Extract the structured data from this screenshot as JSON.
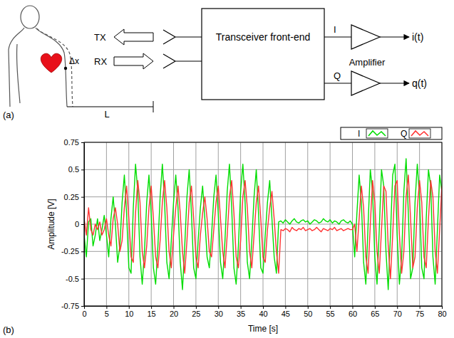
{
  "panel_labels": [
    "(a)",
    "(b)"
  ],
  "diagram": {
    "tx": "TX",
    "rx": "RX",
    "box": "Transceiver front-end",
    "i_channel": "I",
    "q_channel": "Q",
    "amplifier": "Amplifier",
    "i_output": "i(t)",
    "q_output": "q(t)",
    "displacement": "Δx",
    "distance": "L"
  },
  "chart_data": {
    "type": "line",
    "x_label": "Time [s]",
    "y_label": "Amplitude [V]",
    "x": [
      0,
      0.5,
      1,
      1.5,
      2,
      2.5,
      3,
      3.5,
      4,
      4.5,
      5,
      5.5,
      6,
      6.5,
      7,
      7.5,
      8,
      8.5,
      9,
      9.5,
      10,
      10.5,
      11,
      11.5,
      12,
      12.5,
      13,
      13.5,
      14,
      14.5,
      15,
      15.5,
      16,
      16.5,
      17,
      17.5,
      18,
      18.5,
      19,
      19.5,
      20,
      20.5,
      21,
      21.5,
      22,
      22.5,
      23,
      23.5,
      24,
      24.5,
      25,
      25.5,
      26,
      26.5,
      27,
      27.5,
      28,
      28.5,
      29,
      29.5,
      30,
      30.5,
      31,
      31.5,
      32,
      32.5,
      33,
      33.5,
      34,
      34.5,
      35,
      35.5,
      36,
      36.5,
      37,
      37.5,
      38,
      38.5,
      39,
      39.5,
      40,
      40.5,
      41,
      41.5,
      42,
      42.5,
      43,
      43.5,
      44,
      44.5,
      45,
      45.5,
      46,
      46.5,
      47,
      47.5,
      48,
      48.5,
      49,
      49.5,
      50,
      50.5,
      51,
      51.5,
      52,
      52.5,
      53,
      53.5,
      54,
      54.5,
      55,
      55.5,
      56,
      56.5,
      57,
      57.5,
      58,
      58.5,
      59,
      59.5,
      60,
      60.5,
      61,
      61.5,
      62,
      62.5,
      63,
      63.5,
      64,
      64.5,
      65,
      65.5,
      66,
      66.5,
      67,
      67.5,
      68,
      68.5,
      69,
      69.5,
      70,
      70.5,
      71,
      71.5,
      72,
      72.5,
      73,
      73.5,
      74,
      74.5,
      75,
      75.5,
      76,
      76.5,
      77,
      77.5,
      78,
      78.5,
      79,
      79.5,
      80
    ],
    "series": [
      {
        "name": "I",
        "color": "#00dd00",
        "values": [
          -0.1,
          -0.3,
          0.02,
          0.05,
          -0.2,
          -0.1,
          0.05,
          -0.15,
          -0.05,
          0.08,
          -0.1,
          -0.3,
          0.05,
          0.25,
          0.0,
          -0.35,
          -0.2,
          0.2,
          0.45,
          0.1,
          -0.4,
          -0.45,
          0.15,
          0.55,
          0.3,
          -0.3,
          -0.55,
          -0.25,
          0.2,
          0.45,
          0.1,
          -0.4,
          -0.55,
          -0.2,
          0.25,
          0.55,
          0.2,
          -0.35,
          -0.5,
          -0.15,
          0.2,
          0.45,
          0.15,
          -0.35,
          -0.6,
          -0.2,
          0.25,
          0.5,
          0.1,
          -0.4,
          -0.5,
          -0.15,
          0.15,
          0.35,
          0.05,
          -0.3,
          -0.4,
          -0.1,
          0.25,
          0.45,
          0.1,
          -0.35,
          -0.5,
          -0.15,
          0.3,
          0.55,
          0.15,
          -0.4,
          -0.55,
          -0.2,
          0.3,
          0.55,
          0.2,
          -0.35,
          -0.5,
          -0.15,
          0.25,
          0.5,
          0.1,
          -0.4,
          -0.45,
          -0.1,
          0.2,
          0.4,
          0.05,
          -0.3,
          -0.45,
          0.02,
          0.03,
          0.01,
          0.04,
          0.02,
          0.0,
          0.03,
          0.05,
          0.02,
          0.01,
          0.03,
          0.04,
          0.02,
          0.03,
          0.0,
          0.02,
          0.04,
          0.03,
          0.01,
          0.02,
          0.05,
          0.03,
          0.02,
          0.04,
          0.01,
          0.03,
          0.02,
          0.0,
          0.03,
          0.04,
          0.02,
          0.01,
          0.03,
          0.0,
          -0.3,
          0.1,
          0.45,
          0.2,
          -0.35,
          -0.55,
          0.0,
          0.5,
          0.3,
          -0.3,
          -0.55,
          -0.05,
          0.5,
          0.35,
          -0.25,
          -0.6,
          -0.1,
          0.45,
          0.55,
          -0.1,
          -0.55,
          -0.3,
          0.3,
          0.6,
          0.1,
          -0.5,
          -0.4,
          0.2,
          0.55,
          0.25,
          -0.4,
          -0.5,
          0.05,
          0.5,
          0.35,
          -0.3,
          -0.55,
          -0.05,
          0.45,
          0.3
        ]
      },
      {
        "name": "Q",
        "color": "#ff3333",
        "values": [
          0.05,
          -0.1,
          0.15,
          -0.05,
          -0.1,
          0.0,
          -0.05,
          0.02,
          -0.1,
          -0.05,
          0.05,
          -0.1,
          -0.2,
          0.05,
          0.15,
          0.0,
          -0.25,
          -0.15,
          0.15,
          0.35,
          0.05,
          -0.3,
          -0.35,
          0.1,
          0.4,
          0.2,
          -0.25,
          -0.4,
          -0.2,
          0.15,
          0.35,
          0.05,
          -0.3,
          -0.4,
          -0.15,
          0.2,
          0.4,
          0.15,
          -0.25,
          -0.4,
          -0.1,
          0.15,
          0.35,
          0.1,
          -0.25,
          -0.45,
          -0.15,
          0.2,
          0.35,
          0.05,
          -0.3,
          -0.4,
          -0.1,
          0.1,
          0.25,
          0.05,
          -0.25,
          -0.3,
          -0.05,
          0.2,
          0.35,
          0.05,
          -0.25,
          -0.4,
          -0.1,
          0.25,
          0.4,
          0.1,
          -0.3,
          -0.4,
          -0.15,
          0.25,
          0.4,
          0.15,
          -0.25,
          -0.4,
          -0.1,
          0.2,
          0.35,
          0.05,
          -0.3,
          -0.35,
          -0.05,
          0.15,
          0.3,
          0.05,
          -0.25,
          -0.45,
          -0.05,
          -0.06,
          -0.04,
          -0.05,
          -0.07,
          -0.03,
          -0.05,
          -0.06,
          -0.04,
          -0.05,
          -0.03,
          -0.06,
          -0.05,
          -0.04,
          -0.06,
          -0.05,
          -0.03,
          -0.05,
          -0.07,
          -0.04,
          -0.05,
          -0.06,
          -0.04,
          -0.05,
          -0.03,
          -0.06,
          -0.05,
          -0.04,
          -0.06,
          -0.05,
          -0.04,
          -0.05,
          -0.05,
          0.0,
          -0.25,
          0.05,
          0.35,
          0.15,
          -0.3,
          -0.45,
          0.0,
          0.4,
          0.2,
          -0.25,
          -0.45,
          -0.05,
          0.35,
          0.3,
          -0.2,
          -0.5,
          -0.1,
          0.35,
          0.4,
          -0.1,
          -0.45,
          -0.25,
          0.25,
          0.45,
          0.05,
          -0.4,
          -0.3,
          0.15,
          0.4,
          0.2,
          -0.3,
          -0.4,
          0.05,
          0.4,
          0.25,
          -0.25,
          -0.45,
          -0.05,
          0.35
        ]
      }
    ],
    "xlim": [
      0,
      80
    ],
    "xticks": [
      0,
      5,
      10,
      15,
      20,
      25,
      30,
      35,
      40,
      45,
      50,
      55,
      60,
      65,
      70,
      75,
      80
    ],
    "ylim": [
      -0.75,
      0.75
    ],
    "yticks": [
      -0.75,
      -0.5,
      -0.25,
      0,
      0.25,
      0.5,
      0.75
    ],
    "grid": true,
    "legend": "upper right"
  }
}
